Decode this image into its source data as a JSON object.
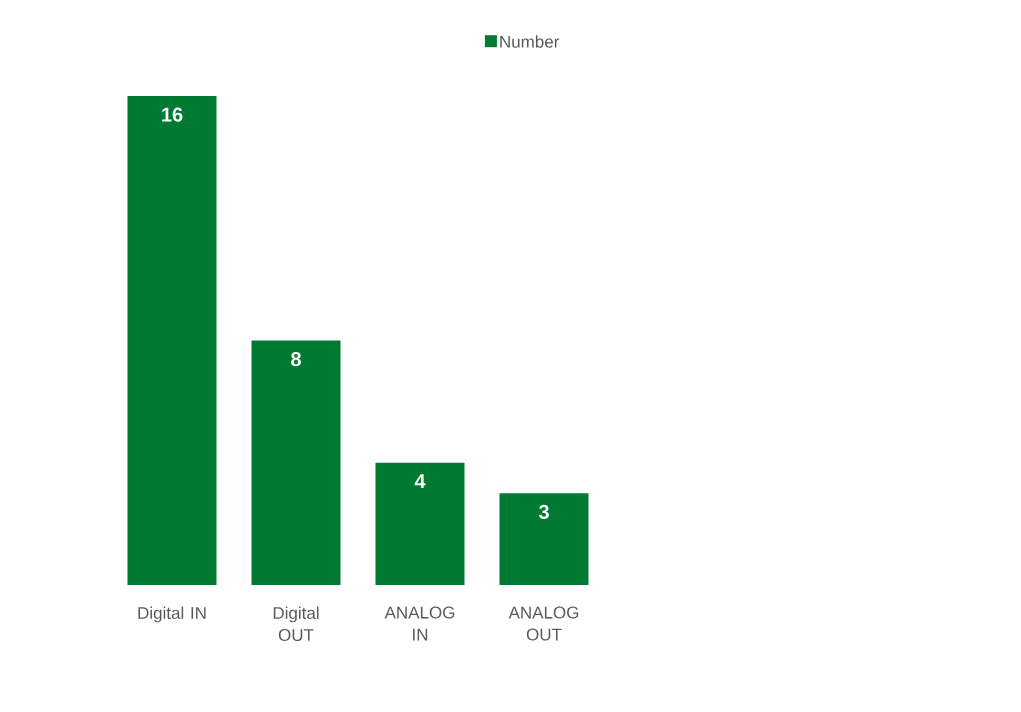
{
  "chart_data": {
    "type": "bar",
    "categories": [
      "Digital IN",
      "Digital OUT",
      "ANALOG IN",
      "ANALOG OUT"
    ],
    "series": [
      {
        "name": "Number",
        "color": "#007a33",
        "values": [
          16,
          8,
          4,
          3
        ]
      }
    ],
    "data_labels": true,
    "legend": "top"
  }
}
